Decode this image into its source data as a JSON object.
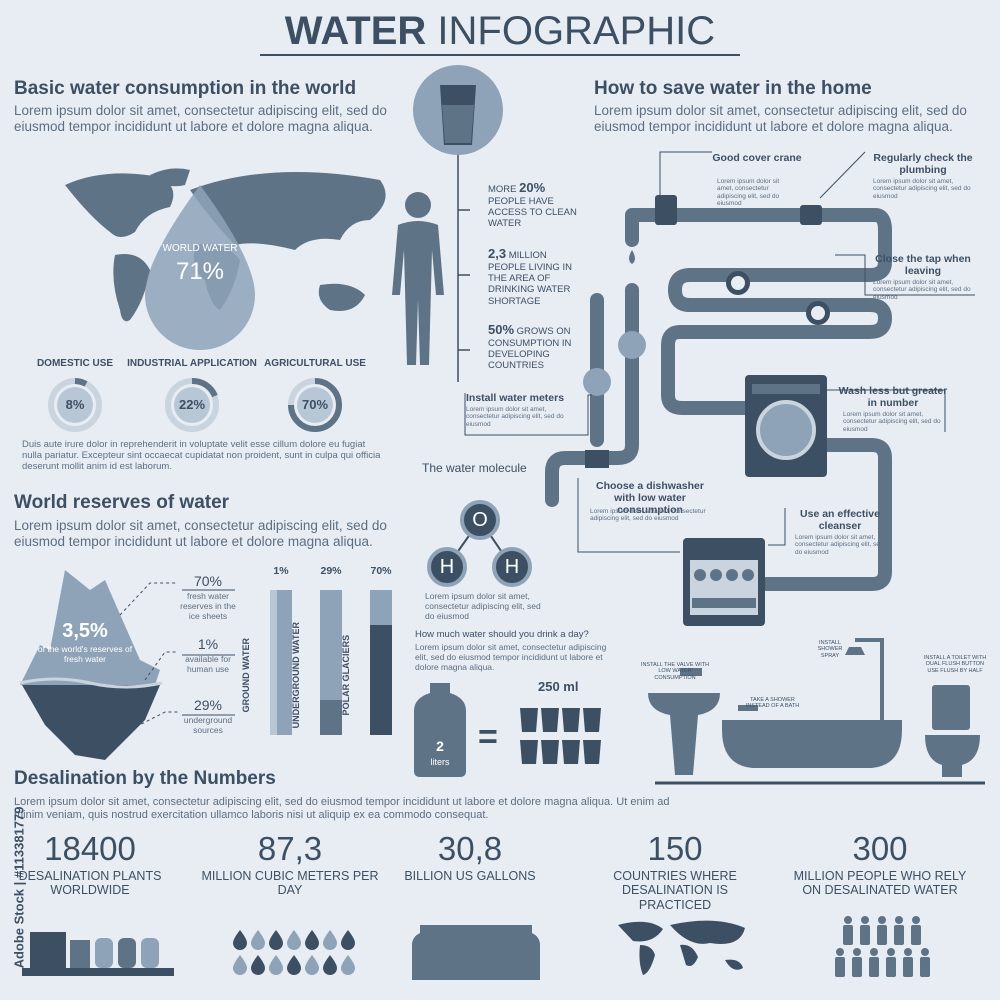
{
  "header": {
    "title_bold": "WATER",
    "title_light": "INFOGRAPHIC"
  },
  "consumption": {
    "title": "Basic water consumption in the world",
    "text": "Lorem ipsum dolor sit amet, consectetur adipiscing elit, sed do eiusmod tempor incididunt ut labore et dolore magna aliqua.",
    "drop_label": "WORLD WATER",
    "drop_value": "71%",
    "uses": [
      {
        "label": "DOMESTIC USE",
        "value": "8%"
      },
      {
        "label": "INDUSTRIAL APPLICATION",
        "value": "22%"
      },
      {
        "label": "AGRICULTURAL USE",
        "value": "70%"
      }
    ],
    "note": "Duis aute irure dolor in reprehenderit in voluptate velit esse cillum dolore eu fugiat nulla pariatur. Excepteur sint occaecat cupidatat non proident, sunt in culpa qui officia deserunt mollit anim id est laborum."
  },
  "person": {
    "stats": [
      {
        "prefix": "MORE",
        "bold": "20%",
        "text": "PEOPLE HAVE ACCESS TO CLEAN WATER"
      },
      {
        "bold": "2,3",
        "text": "MILLION PEOPLE LIVING IN THE AREA OF DRINKING WATER SHORTAGE"
      },
      {
        "bold": "50%",
        "text": "GROWS ON CONSUMPTION IN DEVELOPING COUNTRIES"
      }
    ]
  },
  "save": {
    "title": "How to save water in the home",
    "text": "Lorem ipsum dolor sit amet, consectetur adipiscing elit, sed do eiusmod tempor incididunt ut labore et dolore magna aliqua.",
    "tips": [
      {
        "title": "Good cover crane",
        "text": "Lorem ipsum dolor sit amet, consectetur adipiscing elit, sed do eiusmod"
      },
      {
        "title": "Regularly check the plumbing",
        "text": "Lorem ipsum dolor sit amet, consectetur adipiscing elit, sed do eiusmod"
      },
      {
        "title": "Close the tap when leaving",
        "text": "Lorem ipsum dolor sit amet, consectetur adipiscing elit, sed do eiusmod"
      },
      {
        "title": "Wash less but greater in number",
        "text": "Lorem ipsum dolor sit amet, consectetur adipiscing elit, sed do eiusmod"
      },
      {
        "title": "Install water meters",
        "text": "Lorem ipsum dolor sit amet, consectetur adipiscing elit, sed do eiusmod"
      },
      {
        "title": "Choose a dishwasher with low water consumption",
        "text": "Lorem ipsum dolor sit amet, consectetur adipiscing elit, sed do eiusmod"
      },
      {
        "title": "Use an effective cleanser",
        "text": "Lorem ipsum dolor sit amet, consectetur adipiscing elit, sed do eiusmod"
      }
    ]
  },
  "molecule": {
    "title": "The water molecule",
    "atoms": [
      "O",
      "H",
      "H"
    ],
    "text": "Lorem ipsum dolor sit amet, consectetur adipiscing elit, sed do eiusmod"
  },
  "drink": {
    "title": "How much water should you drink a day?",
    "text": "Lorem ipsum dolor sit amet, consectetur adipiscing elit, sed do eiusmod tempor incididunt ut labore et dolore magna aliqua.",
    "bottle_value": "2",
    "bottle_unit": "liters",
    "equals": "=",
    "glass": "250 ml"
  },
  "bathroom": {
    "notes": [
      "INSTALL THE VALVE WITH LOW WATER CONSUMPTION",
      "TAKE A SHOWER INSTEAD OF A BATH",
      "INSTALL SHOWER SPRAY",
      "INSTALL A TOILET WITH DUAL FLUSH BUTTON USE FLUSH BY HALF"
    ]
  },
  "reserves": {
    "title": "World reserves of water",
    "text": "Lorem ipsum dolor sit amet, consectetur adipiscing elit, sed do eiusmod tempor incididunt ut labore et dolore magna aliqua.",
    "iceberg_value": "3,5%",
    "iceberg_text": "of the world's reserves of fresh water",
    "items": [
      {
        "value": "70%",
        "text": "fresh water reserves in the ice sheets"
      },
      {
        "value": "1%",
        "text": "available for human use"
      },
      {
        "value": "29%",
        "text": "underground sources"
      }
    ],
    "bars": [
      {
        "label": "GROUND WATER",
        "value": "1%"
      },
      {
        "label": "UNDERGROUND WATER",
        "value": "29%"
      },
      {
        "label": "POLAR GLACIERS",
        "value": "70%"
      }
    ]
  },
  "desalination": {
    "title": "Desalination by the Numbers",
    "text": "Lorem ipsum dolor sit amet, consectetur adipiscing elit, sed do eiusmod tempor incididunt ut labore et dolore magna aliqua. Ut enim ad minim veniam, quis nostrud exercitation ullamco laboris nisi ut aliquip ex ea commodo consequat.",
    "stats": [
      {
        "value": "18400",
        "label": "DESALINATION PLANTS WORLDWIDE"
      },
      {
        "value": "87,3",
        "label": "MILLION CUBIC METERS PER DAY"
      },
      {
        "value": "30,8",
        "label": "BILLION US GALLONS"
      },
      {
        "value": "150",
        "label": "COUNTRIES WHERE DESALINATION IS PRACTICED"
      },
      {
        "value": "300",
        "label": "MILLION PEOPLE WHO RELY ON DESALINATED WATER"
      }
    ]
  },
  "watermark": "Adobe Stock | #113381779"
}
